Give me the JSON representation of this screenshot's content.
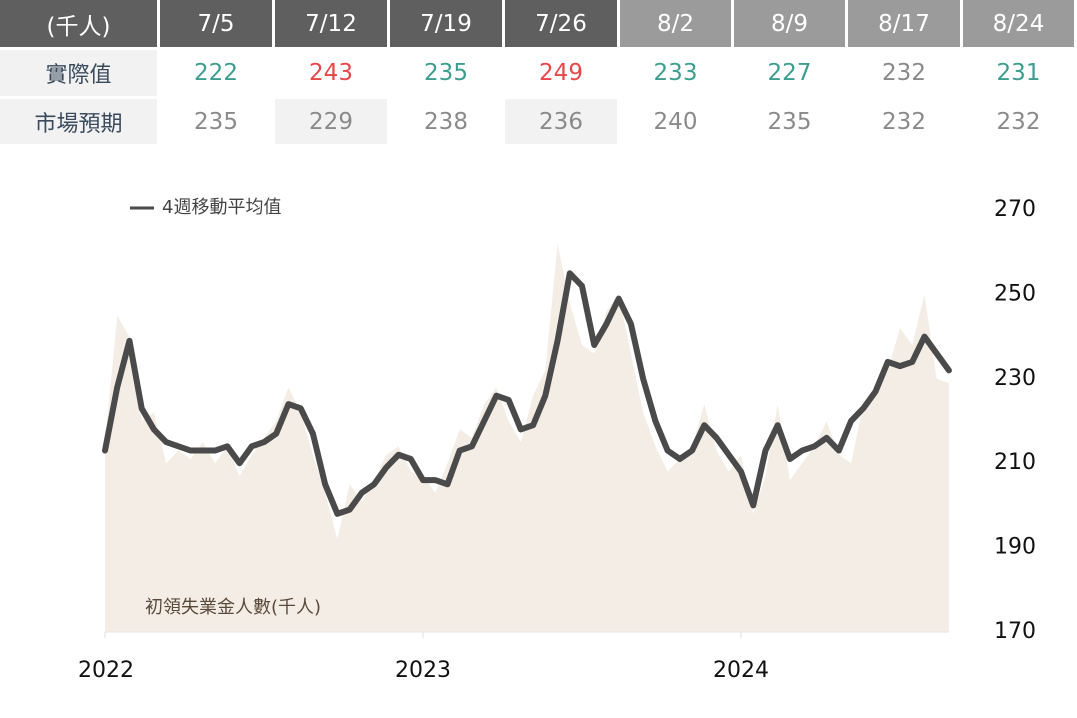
{
  "table": {
    "header": [
      "(千人)",
      "7/5",
      "7/12",
      "7/19",
      "7/26",
      "8/2",
      "8/9",
      "8/17",
      "8/24"
    ],
    "rows": [
      [
        "實際值",
        "222",
        "243",
        "235",
        "249",
        "233",
        "227",
        "232",
        "231"
      ],
      [
        "市場預期",
        "235",
        "229",
        "238",
        "236",
        "240",
        "235",
        "232",
        "232"
      ]
    ],
    "value_colors": [
      "#3d9e8f",
      "#e8474a",
      "#3d9e8f",
      "#e8474a",
      "#3d9e8f",
      "#3d9e8f",
      "#8a8a8a",
      "#3d9e8f"
    ]
  },
  "chart_data": {
    "type": "line",
    "categories": [
      "2022",
      null,
      null,
      null,
      null,
      null,
      null,
      null,
      null,
      null,
      null,
      null,
      null,
      null,
      null,
      null,
      null,
      null,
      null,
      null,
      null,
      null,
      null,
      null,
      null,
      null,
      "2023",
      null,
      null,
      null,
      null,
      null,
      null,
      null,
      null,
      null,
      null,
      null,
      null,
      null,
      null,
      null,
      null,
      null,
      null,
      null,
      null,
      null,
      null,
      null,
      null,
      null,
      "2024",
      null,
      null,
      null,
      null,
      null,
      null,
      null,
      null,
      null,
      null,
      null,
      null,
      null,
      null,
      null,
      null,
      null
    ],
    "series": [
      {
        "name": "初領失業金人數(千人)",
        "kind": "area",
        "color": "#f4ede6",
        "values": [
          215,
          245,
          240,
          220,
          222,
          210,
          213,
          211,
          215,
          210,
          214,
          207,
          212,
          216,
          220,
          228,
          222,
          212,
          203,
          192,
          205,
          201,
          206,
          212,
          214,
          208,
          207,
          203,
          210,
          218,
          216,
          224,
          228,
          220,
          215,
          226,
          232,
          262,
          248,
          238,
          236,
          246,
          250,
          236,
          222,
          214,
          208,
          211,
          214,
          224,
          213,
          208,
          212,
          198,
          207,
          224,
          206,
          210,
          214,
          220,
          212,
          210,
          224,
          226,
          232,
          242,
          238,
          250,
          230,
          229
        ]
      },
      {
        "name": "4週移動平均值",
        "kind": "line",
        "color": "#4a4a4a",
        "values": [
          213,
          228,
          239,
          223,
          218,
          215,
          214,
          213,
          213,
          213,
          214,
          210,
          214,
          215,
          217,
          224,
          223,
          217,
          205,
          198,
          199,
          203,
          205,
          209,
          212,
          211,
          206,
          206,
          205,
          213,
          214,
          220,
          226,
          225,
          218,
          219,
          226,
          239,
          255,
          252,
          238,
          243,
          249,
          243,
          230,
          220,
          213,
          211,
          213,
          219,
          216,
          212,
          208,
          200,
          213,
          219,
          211,
          213,
          214,
          216,
          213,
          220,
          223,
          227,
          234,
          233,
          234,
          240,
          236,
          232
        ]
      }
    ],
    "ylim": [
      170,
      270
    ],
    "yticks": [
      170,
      190,
      210,
      230,
      250,
      270
    ]
  }
}
